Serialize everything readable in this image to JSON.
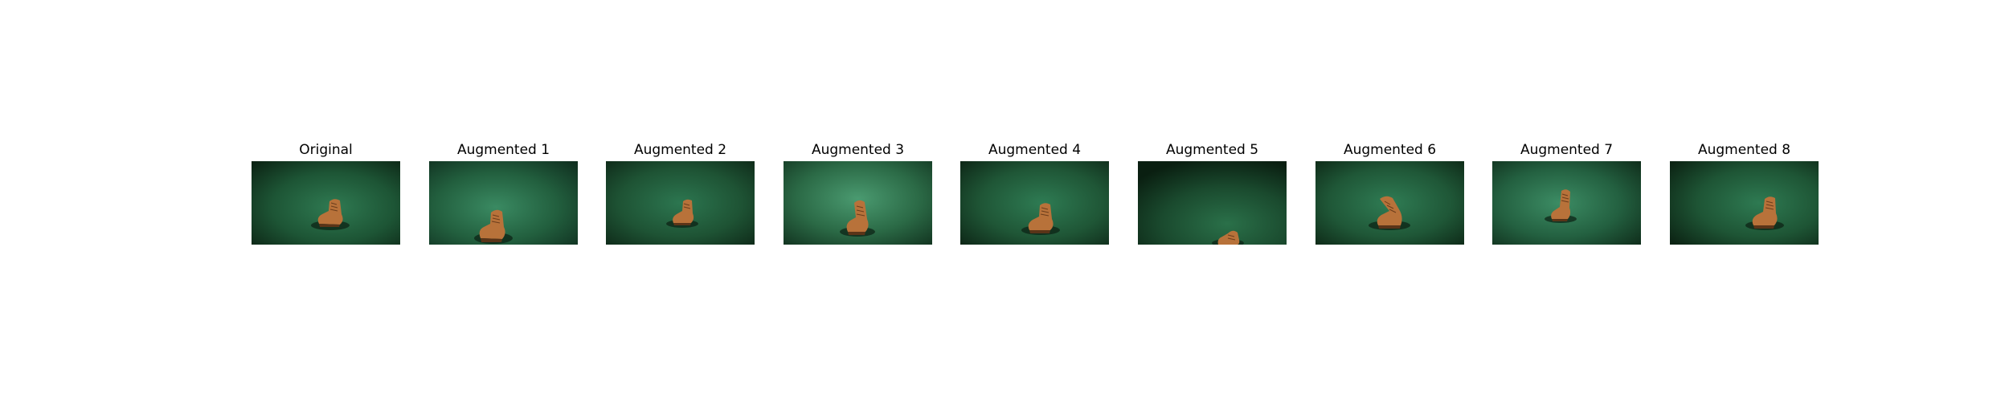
{
  "figure": {
    "panels": [
      {
        "title": "Original"
      },
      {
        "title": "Augmented 1"
      },
      {
        "title": "Augmented 2"
      },
      {
        "title": "Augmented 3"
      },
      {
        "title": "Augmented 4"
      },
      {
        "title": "Augmented 5"
      },
      {
        "title": "Augmented 6"
      },
      {
        "title": "Augmented 7"
      },
      {
        "title": "Augmented 8"
      }
    ]
  },
  "colors": {
    "background_green": "#1f5a3a",
    "shadow_green": "#0e2b1a",
    "boot_brown": "#b8723a",
    "boot_dark": "#5a3418"
  }
}
